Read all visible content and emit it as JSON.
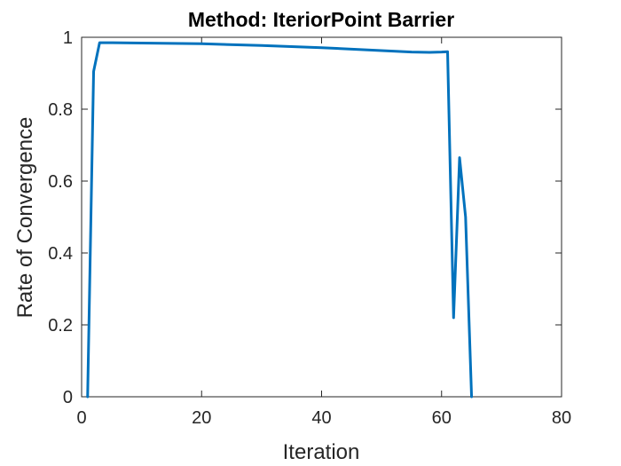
{
  "chart_data": {
    "type": "line",
    "title": "Method: IteriorPoint Barrier",
    "xlabel": "Iteration",
    "ylabel": "Rate of Convergence",
    "xlim": [
      0,
      80
    ],
    "ylim": [
      0,
      1
    ],
    "xticks": [
      0,
      20,
      40,
      60,
      80
    ],
    "yticks": [
      0,
      0.2,
      0.4,
      0.6,
      0.8,
      1
    ],
    "xtick_labels": [
      "0",
      "20",
      "40",
      "60",
      "80"
    ],
    "ytick_labels": [
      "0",
      "0.2",
      "0.4",
      "0.6",
      "0.8",
      "1"
    ],
    "grid": false,
    "series": [
      {
        "color": "#0072BD",
        "x": [
          1,
          2,
          3,
          5,
          10,
          20,
          30,
          40,
          50,
          55,
          58,
          60,
          61,
          62,
          63,
          64,
          65
        ],
        "y": [
          0,
          0.905,
          0.985,
          0.985,
          0.984,
          0.982,
          0.977,
          0.971,
          0.963,
          0.959,
          0.958,
          0.959,
          0.96,
          0.22,
          0.665,
          0.5,
          0
        ]
      }
    ]
  }
}
